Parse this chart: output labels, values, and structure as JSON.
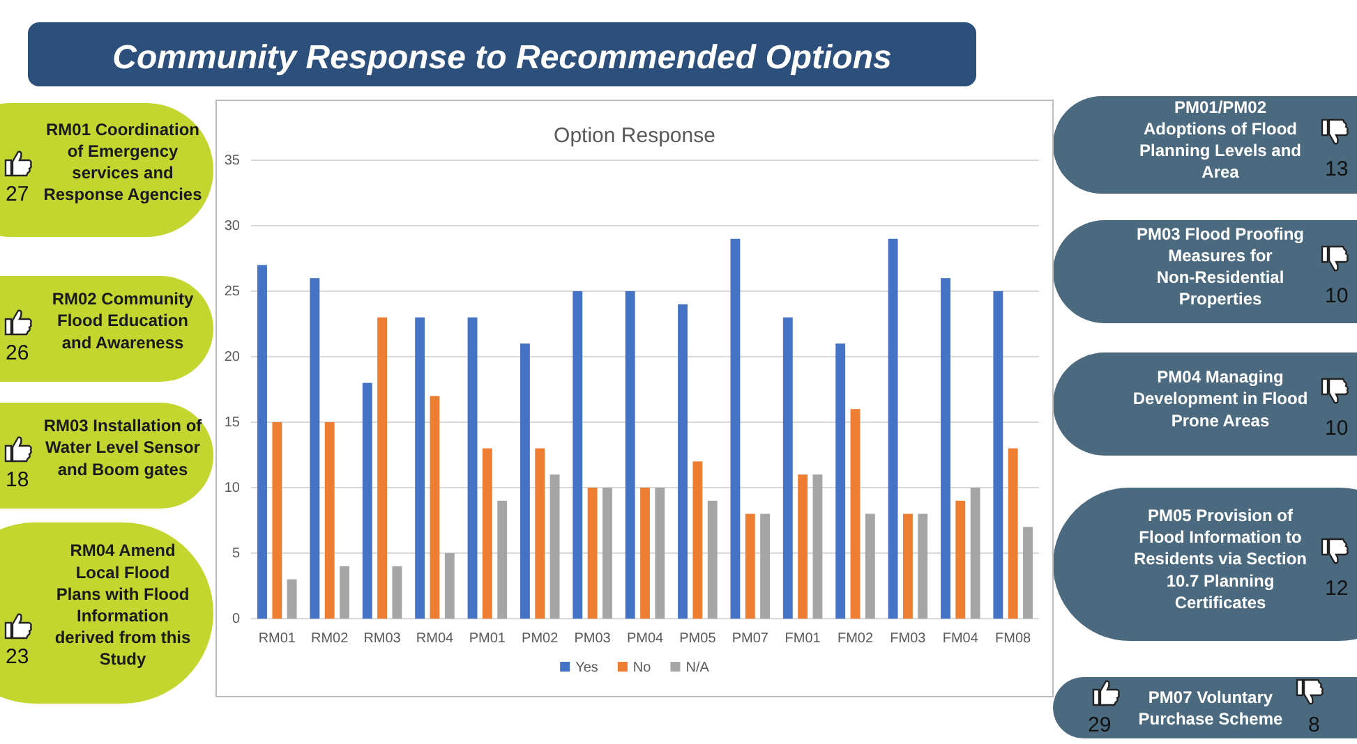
{
  "chart_data": {
    "type": "bar",
    "title": "Community Response to Recommended Options",
    "subtitle": "Option Response",
    "categories": [
      "RM01",
      "RM02",
      "RM03",
      "RM04",
      "PM01",
      "PM02",
      "PM03",
      "PM04",
      "PM05",
      "PM07",
      "FM01",
      "FM02",
      "FM03",
      "FM04",
      "FM08"
    ],
    "series": [
      {
        "name": "Yes",
        "color": "#4472c4",
        "values": [
          27,
          26,
          18,
          23,
          23,
          21,
          25,
          25,
          24,
          29,
          23,
          21,
          29,
          26,
          25
        ]
      },
      {
        "name": "No",
        "color": "#ed7d31",
        "values": [
          15,
          15,
          23,
          17,
          13,
          13,
          10,
          10,
          12,
          8,
          11,
          16,
          8,
          9,
          13
        ]
      },
      {
        "name": "N/A",
        "color": "#a5a5a5",
        "values": [
          3,
          4,
          4,
          5,
          9,
          11,
          10,
          10,
          9,
          8,
          11,
          8,
          8,
          10,
          7
        ]
      }
    ],
    "ylim": [
      0,
      35
    ],
    "yticks": [
      0,
      5,
      10,
      15,
      20,
      25,
      30,
      35
    ],
    "grid": "y",
    "legend": "bottom",
    "annotations": [
      "RM01 Coordination of Emergency services and Response Agencies",
      "27",
      "RM02 Community Flood Education and Awareness",
      "26",
      "RM03 Installation of Water Level Sensor and Boom gates",
      "18",
      "RM04 Amend Local Flood Plans with Flood Information derived from this Study",
      "23",
      "PM01/PM02 Adoptions of Flood Planning Levels and Area",
      "13",
      "PM03 Flood Proofing Measures for Non-Residential Properties",
      "10",
      "PM04 Managing Development in Flood Prone Areas",
      "10",
      "PM05 Provision of Flood Information to Residents via Section 10.7 Planning Certificates",
      "12",
      "PM07 Voluntary Purchase Scheme",
      "29",
      "8"
    ]
  }
}
